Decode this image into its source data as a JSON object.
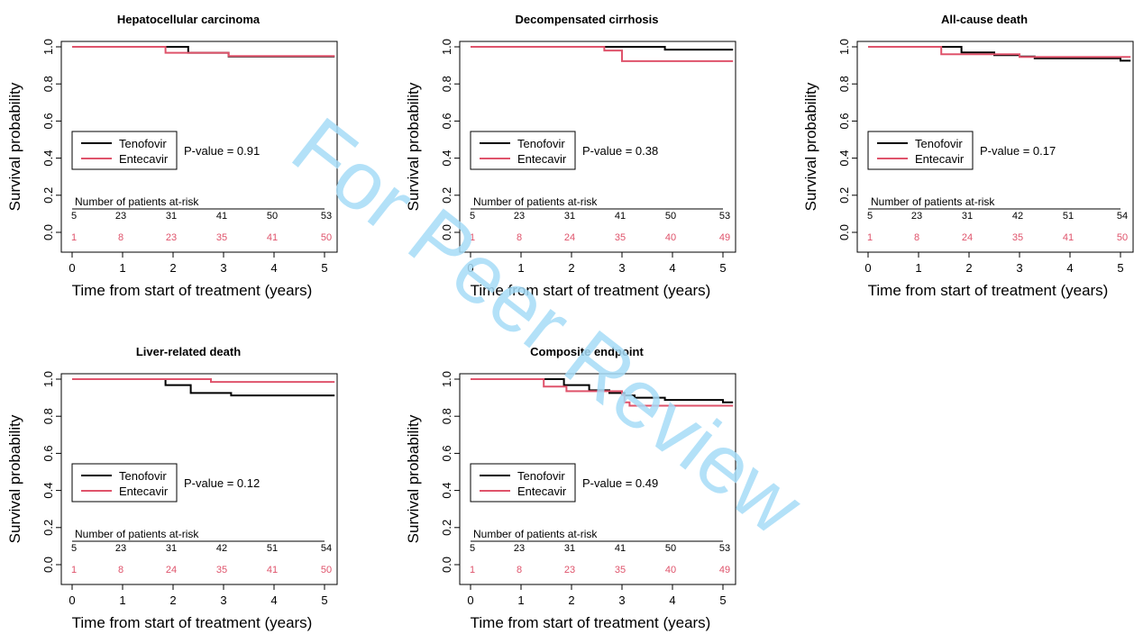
{
  "watermark": "For Peer Review",
  "colors": {
    "tenofovir": "#000000",
    "entecavir": "#df536b",
    "watermark": "#a6dcf7"
  },
  "chart_data": [
    {
      "type": "line",
      "title": "Hepatocellular carcinoma",
      "xlabel": "Time from start of treatment (years)",
      "ylabel": "Survival probability",
      "xlim": [
        0,
        5.2
      ],
      "ylim": [
        0,
        1.0
      ],
      "xticks": [
        "0",
        "1",
        "2",
        "3",
        "4",
        "5"
      ],
      "yticks": [
        "0.0",
        "0.2",
        "0.4",
        "0.6",
        "0.8",
        "1.0"
      ],
      "pvalue": "P-value = 0.91",
      "legend": {
        "position": "left",
        "entries": [
          "Tenofovir",
          "Entecavir"
        ]
      },
      "series": [
        {
          "name": "Tenofovir",
          "color": "#000000",
          "x": [
            0,
            2.3,
            2.3,
            3.1,
            3.1,
            5.2
          ],
          "y": [
            1.0,
            1.0,
            0.968,
            0.968,
            0.948,
            0.948
          ]
        },
        {
          "name": "Entecavir",
          "color": "#df536b",
          "x": [
            0,
            1.85,
            1.85,
            3.1,
            3.1,
            5.2
          ],
          "y": [
            1.0,
            1.0,
            0.968,
            0.968,
            0.95,
            0.95
          ]
        }
      ],
      "risk_table": {
        "title": "Number of patients at-risk",
        "tenofovir": [
          "5",
          "23",
          "31",
          "41",
          "50",
          "53"
        ],
        "entecavir": [
          "1",
          "8",
          "23",
          "35",
          "41",
          "50"
        ]
      }
    },
    {
      "type": "line",
      "title": "Decompensated cirrhosis",
      "xlabel": "Time from start of treatment (years)",
      "ylabel": "Survival probability",
      "xlim": [
        0,
        5.2
      ],
      "ylim": [
        0,
        1.0
      ],
      "xticks": [
        "0",
        "1",
        "2",
        "3",
        "4",
        "5"
      ],
      "yticks": [
        "0.0",
        "0.2",
        "0.4",
        "0.6",
        "0.8",
        "1.0"
      ],
      "pvalue": "P-value = 0.38",
      "legend": {
        "position": "left",
        "entries": [
          "Tenofovir",
          "Entecavir"
        ]
      },
      "series": [
        {
          "name": "Tenofovir",
          "color": "#000000",
          "x": [
            0,
            3.85,
            3.85,
            5.2
          ],
          "y": [
            1.0,
            1.0,
            0.985,
            0.985
          ]
        },
        {
          "name": "Entecavir",
          "color": "#df536b",
          "x": [
            0,
            2.65,
            2.65,
            3.0,
            3.0,
            5.2
          ],
          "y": [
            1.0,
            1.0,
            0.98,
            0.98,
            0.923,
            0.923
          ]
        }
      ],
      "risk_table": {
        "title": "Number of patients at-risk",
        "tenofovir": [
          "5",
          "23",
          "31",
          "41",
          "50",
          "53"
        ],
        "entecavir": [
          "1",
          "8",
          "24",
          "35",
          "40",
          "49"
        ]
      }
    },
    {
      "type": "line",
      "title": "All-cause death",
      "xlabel": "Time from start of treatment (years)",
      "ylabel": "Survival probability",
      "xlim": [
        0,
        5.2
      ],
      "ylim": [
        0,
        1.0
      ],
      "xticks": [
        "0",
        "1",
        "2",
        "3",
        "4",
        "5"
      ],
      "yticks": [
        "0.0",
        "0.2",
        "0.4",
        "0.6",
        "0.8",
        "1.0"
      ],
      "pvalue": "P-value = 0.17",
      "legend": {
        "position": "left",
        "entries": [
          "Tenofovir",
          "Entecavir"
        ]
      },
      "series": [
        {
          "name": "Tenofovir",
          "color": "#000000",
          "x": [
            0,
            1.85,
            1.85,
            2.5,
            2.5,
            3.0,
            3.0,
            3.3,
            3.3,
            5.0,
            5.0,
            5.2
          ],
          "y": [
            1.0,
            1.0,
            0.97,
            0.97,
            0.955,
            0.955,
            0.948,
            0.948,
            0.938,
            0.938,
            0.925,
            0.925
          ]
        },
        {
          "name": "Entecavir",
          "color": "#df536b",
          "x": [
            0,
            1.45,
            1.45,
            3.0,
            3.0,
            3.3,
            3.3,
            5.2
          ],
          "y": [
            1.0,
            1.0,
            0.96,
            0.96,
            0.945,
            0.945,
            0.945,
            0.945
          ]
        }
      ],
      "risk_table": {
        "title": "Number of patients at-risk",
        "tenofovir": [
          "5",
          "23",
          "31",
          "42",
          "51",
          "54"
        ],
        "entecavir": [
          "1",
          "8",
          "24",
          "35",
          "41",
          "50"
        ]
      }
    },
    {
      "type": "line",
      "title": "Liver-related death",
      "xlabel": "Time from start of treatment (years)",
      "ylabel": "Survival probability",
      "xlim": [
        0,
        5.2
      ],
      "ylim": [
        0,
        1.0
      ],
      "xticks": [
        "0",
        "1",
        "2",
        "3",
        "4",
        "5"
      ],
      "yticks": [
        "0.0",
        "0.2",
        "0.4",
        "0.6",
        "0.8",
        "1.0"
      ],
      "pvalue": "P-value = 0.12",
      "legend": {
        "position": "left",
        "entries": [
          "Tenofovir",
          "Entecavir"
        ]
      },
      "series": [
        {
          "name": "Tenofovir",
          "color": "#000000",
          "x": [
            0,
            1.85,
            1.85,
            2.35,
            2.35,
            3.15,
            3.15,
            5.2
          ],
          "y": [
            1.0,
            1.0,
            0.968,
            0.968,
            0.925,
            0.925,
            0.912,
            0.912
          ]
        },
        {
          "name": "Entecavir",
          "color": "#df536b",
          "x": [
            0,
            2.75,
            2.75,
            5.2
          ],
          "y": [
            1.0,
            1.0,
            0.985,
            0.985
          ]
        }
      ],
      "risk_table": {
        "title": "Number of patients at-risk",
        "tenofovir": [
          "5",
          "23",
          "31",
          "42",
          "51",
          "54"
        ],
        "entecavir": [
          "1",
          "8",
          "24",
          "35",
          "41",
          "50"
        ]
      }
    },
    {
      "type": "line",
      "title": "Composite endpoint",
      "xlabel": "Time from start of treatment (years)",
      "ylabel": "Survival probability",
      "xlim": [
        0,
        5.2
      ],
      "ylim": [
        0,
        1.0
      ],
      "xticks": [
        "0",
        "1",
        "2",
        "3",
        "4",
        "5"
      ],
      "yticks": [
        "0.0",
        "0.2",
        "0.4",
        "0.6",
        "0.8",
        "1.0"
      ],
      "pvalue": "P-value = 0.49",
      "legend": {
        "position": "left",
        "entries": [
          "Tenofovir",
          "Entecavir"
        ]
      },
      "series": [
        {
          "name": "Tenofovir",
          "color": "#000000",
          "x": [
            0,
            1.85,
            1.85,
            2.35,
            2.35,
            2.75,
            2.75,
            3.05,
            3.05,
            3.25,
            3.25,
            3.85,
            3.85,
            5.0,
            5.0,
            5.2
          ],
          "y": [
            1.0,
            1.0,
            0.968,
            0.968,
            0.94,
            0.94,
            0.925,
            0.925,
            0.912,
            0.912,
            0.9,
            0.9,
            0.888,
            0.888,
            0.875,
            0.875
          ]
        },
        {
          "name": "Entecavir",
          "color": "#df536b",
          "x": [
            0,
            1.45,
            1.45,
            1.9,
            1.9,
            3.0,
            3.0,
            3.05,
            3.05,
            3.15,
            3.15,
            5.2
          ],
          "y": [
            1.0,
            1.0,
            0.96,
            0.96,
            0.935,
            0.935,
            0.915,
            0.915,
            0.875,
            0.875,
            0.857,
            0.857
          ]
        }
      ],
      "risk_table": {
        "title": "Number of patients at-risk",
        "tenofovir": [
          "5",
          "23",
          "31",
          "41",
          "50",
          "53"
        ],
        "entecavir": [
          "1",
          "8",
          "23",
          "35",
          "40",
          "49"
        ]
      }
    }
  ]
}
